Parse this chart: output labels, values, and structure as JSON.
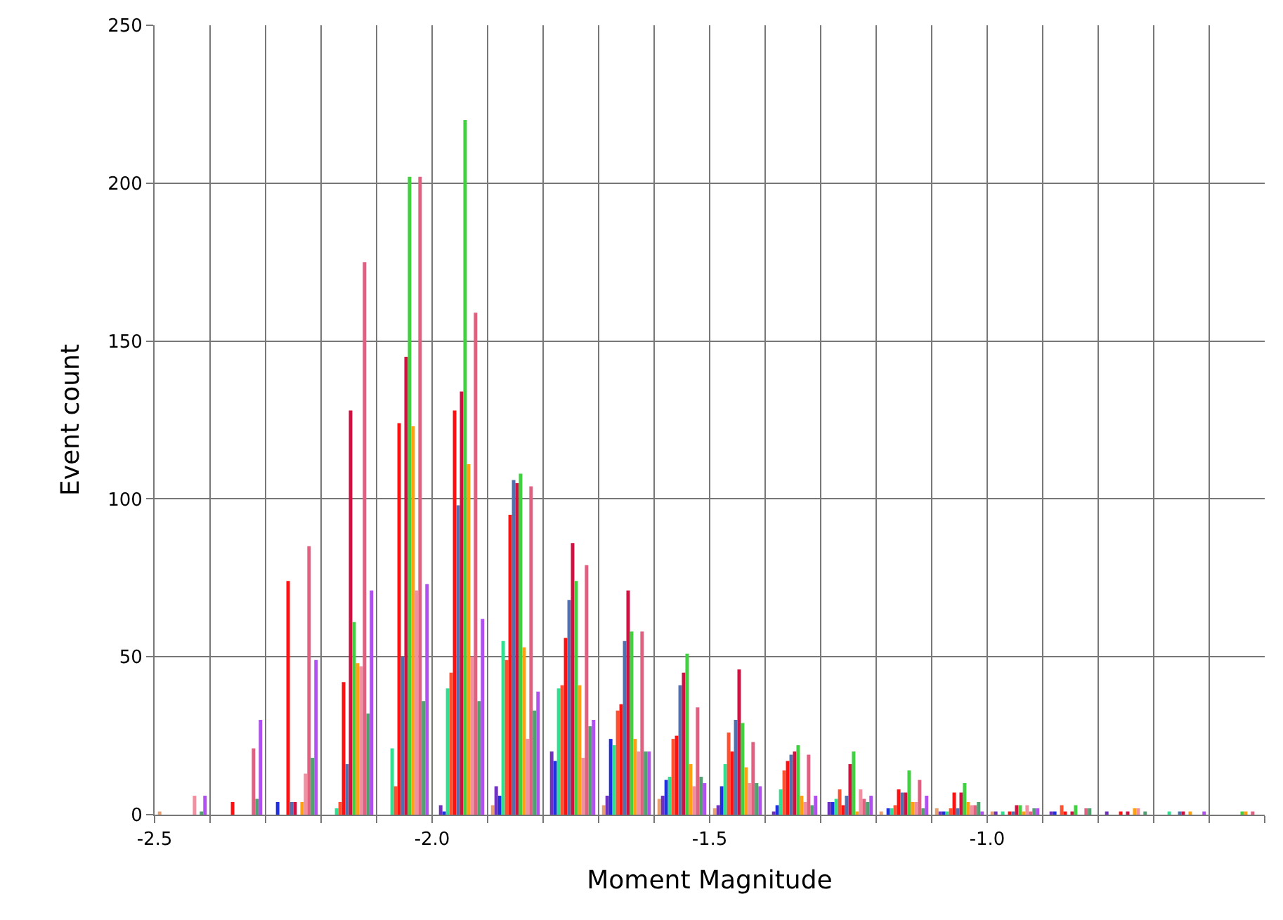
{
  "chart_data": {
    "type": "bar",
    "xlabel": "Moment Magnitude",
    "ylabel": "Event count",
    "x": [
      -2.45,
      -2.35,
      -2.25,
      -2.15,
      -2.05,
      -1.95,
      -1.85,
      -1.75,
      -1.65,
      -1.55,
      -1.45,
      -1.35,
      -1.25,
      -1.15,
      -1.05,
      -0.95,
      -0.85,
      -0.75,
      -0.65,
      -0.55
    ],
    "series": [
      {
        "color": "#e8a070",
        "values": [
          1,
          0,
          0,
          0,
          0,
          0,
          3,
          0,
          3,
          5,
          2,
          0,
          0,
          1,
          2,
          1,
          0,
          0,
          0,
          0
        ]
      },
      {
        "color": "#7030c0",
        "values": [
          0,
          0,
          0,
          0,
          0,
          3,
          9,
          20,
          6,
          6,
          3,
          1,
          4,
          0,
          1,
          1,
          1,
          1,
          0,
          0
        ]
      },
      {
        "color": "#2030e0",
        "values": [
          0,
          0,
          4,
          0,
          0,
          1,
          6,
          17,
          24,
          11,
          9,
          3,
          4,
          2,
          1,
          0,
          1,
          0,
          0,
          0
        ]
      },
      {
        "color": "#30e090",
        "values": [
          0,
          0,
          0,
          2,
          21,
          40,
          55,
          40,
          22,
          12,
          16,
          8,
          5,
          2,
          1,
          1,
          0,
          0,
          1,
          0
        ]
      },
      {
        "color": "#ff5030",
        "values": [
          0,
          0,
          0,
          4,
          9,
          45,
          49,
          41,
          33,
          24,
          26,
          14,
          8,
          3,
          2,
          0,
          3,
          0,
          0,
          0
        ]
      },
      {
        "color": "#ff1010",
        "values": [
          0,
          4,
          74,
          42,
          124,
          128,
          95,
          56,
          35,
          25,
          20,
          17,
          3,
          8,
          7,
          1,
          1,
          1,
          0,
          0
        ]
      },
      {
        "color": "#5070b0",
        "values": [
          0,
          0,
          4,
          16,
          50,
          98,
          106,
          68,
          55,
          41,
          30,
          19,
          6,
          7,
          2,
          1,
          0,
          0,
          1,
          0
        ]
      },
      {
        "color": "#d01040",
        "values": [
          0,
          0,
          4,
          128,
          145,
          134,
          105,
          86,
          71,
          45,
          46,
          20,
          16,
          7,
          7,
          3,
          1,
          1,
          1,
          0
        ]
      },
      {
        "color": "#40d040",
        "values": [
          0,
          0,
          0,
          61,
          202,
          220,
          108,
          74,
          58,
          51,
          29,
          22,
          20,
          14,
          10,
          3,
          3,
          0,
          0,
          1
        ]
      },
      {
        "color": "#ffa010",
        "values": [
          0,
          0,
          4,
          48,
          123,
          111,
          53,
          41,
          24,
          16,
          15,
          6,
          1,
          4,
          4,
          1,
          0,
          2,
          1,
          1
        ]
      },
      {
        "color": "#f090a0",
        "values": [
          6,
          0,
          13,
          47,
          71,
          50,
          24,
          18,
          20,
          9,
          10,
          4,
          8,
          4,
          3,
          3,
          0,
          2,
          0,
          0
        ]
      },
      {
        "color": "#e06080",
        "values": [
          0,
          21,
          85,
          175,
          202,
          159,
          104,
          79,
          58,
          34,
          23,
          19,
          5,
          11,
          3,
          1,
          2,
          0,
          0,
          1
        ]
      },
      {
        "color": "#50a070",
        "values": [
          1,
          5,
          18,
          32,
          36,
          36,
          33,
          28,
          20,
          12,
          10,
          3,
          4,
          2,
          4,
          2,
          2,
          1,
          0,
          0
        ]
      },
      {
        "color": "#b050f0",
        "values": [
          6,
          30,
          49,
          71,
          73,
          62,
          39,
          30,
          20,
          10,
          9,
          6,
          6,
          6,
          1,
          2,
          0,
          0,
          1,
          0
        ]
      }
    ],
    "xlim": [
      -2.5,
      -0.5
    ],
    "xticks": [
      {
        "value": -2.5,
        "label": "-2.5"
      },
      {
        "value": -2.4,
        "label": null
      },
      {
        "value": -2.3,
        "label": null
      },
      {
        "value": -2.2,
        "label": null
      },
      {
        "value": -2.1,
        "label": null
      },
      {
        "value": -2.0,
        "label": "-2.0"
      },
      {
        "value": -1.9,
        "label": null
      },
      {
        "value": -1.8,
        "label": null
      },
      {
        "value": -1.7,
        "label": null
      },
      {
        "value": -1.6,
        "label": null
      },
      {
        "value": -1.5,
        "label": "-1.5"
      },
      {
        "value": -1.4,
        "label": null
      },
      {
        "value": -1.3,
        "label": null
      },
      {
        "value": -1.2,
        "label": null
      },
      {
        "value": -1.1,
        "label": null
      },
      {
        "value": -1.0,
        "label": "-1.0"
      },
      {
        "value": -0.9,
        "label": null
      },
      {
        "value": -0.8,
        "label": null
      },
      {
        "value": -0.7,
        "label": null
      },
      {
        "value": -0.6,
        "label": null
      },
      {
        "value": -0.5,
        "label": null
      }
    ],
    "ylim": [
      0,
      250
    ],
    "yticks": [
      0,
      50,
      100,
      150,
      200,
      250
    ],
    "grid": true,
    "legend": false
  }
}
